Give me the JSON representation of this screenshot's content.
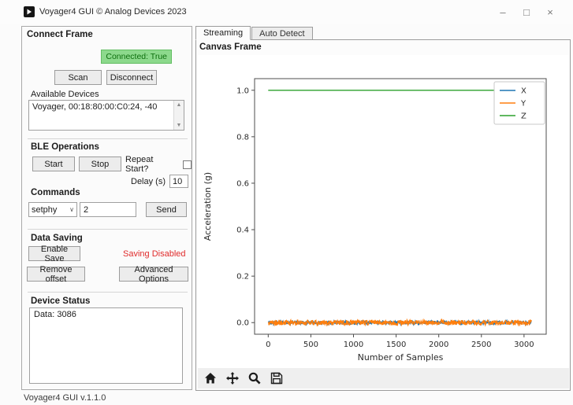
{
  "window": {
    "title": "Voyager4 GUI © Analog Devices 2023",
    "statusbar_text": "Voyager4 GUI v.1.1.0",
    "controls": {
      "minimize_glyph": "–",
      "maximize_glyph": "□",
      "close_glyph": "×"
    }
  },
  "icons": {
    "app_logo": "play-triangle-icon",
    "dropdown_chevron": "∨",
    "scroll_up": "▲",
    "scroll_down": "▼",
    "mpl_toolbar": [
      "home-icon",
      "pan-icon",
      "zoom-icon",
      "save-icon"
    ]
  },
  "left_panel": {
    "title": "Connect Frame",
    "connected_badge": "Connected: True",
    "badge_colors": {
      "background": "#8cd98c",
      "text": "#0d6e0d"
    },
    "scan_button": "Scan",
    "disconnect_button": "Disconnect",
    "available_devices_label": "Available Devices",
    "devices": [
      "Voyager, 00:18:80:00:C0:24, -40"
    ],
    "ble_operations": {
      "title": "BLE Operations",
      "start_button": "Start",
      "stop_button": "Stop",
      "repeat_label": "Repeat Start?",
      "repeat_checked": false,
      "delay_label": "Delay (s)",
      "delay_value": "10"
    },
    "commands": {
      "title": "Commands",
      "selected_command": "setphy",
      "argument_value": "2",
      "send_button": "Send"
    },
    "data_saving": {
      "title": "Data Saving",
      "enable_save_button": "Enable Save",
      "saving_status": "Saving Disabled",
      "saving_status_color": "#e02b2b",
      "remove_offset_button": "Remove offset",
      "advanced_options_button": "Advanced Options"
    },
    "device_status": {
      "title": "Device Status",
      "text": "Data: 3086"
    }
  },
  "right_panel": {
    "tabs": [
      {
        "label": "Streaming",
        "active": true
      },
      {
        "label": "Auto Detect",
        "active": false
      }
    ],
    "canvas_title": "Canvas Frame"
  },
  "chart_data": {
    "type": "line",
    "title": "",
    "xlabel": "Number of Samples",
    "ylabel": "Acceleration (g)",
    "xticks": [
      0,
      500,
      1000,
      1500,
      2000,
      2500,
      3000
    ],
    "yticks": [
      0.0,
      0.2,
      0.4,
      0.6,
      0.8,
      1.0
    ],
    "xlim": [
      -160,
      3260
    ],
    "ylim": [
      -0.05,
      1.05
    ],
    "n_samples": 3086,
    "grid": false,
    "legend": {
      "position": "upper right",
      "entries": [
        "X",
        "Y",
        "Z"
      ]
    },
    "series": [
      {
        "name": "X",
        "color": "#1f77b4",
        "mean": 0.0,
        "noise": 0.008
      },
      {
        "name": "Y",
        "color": "#ff7f0e",
        "mean": 0.0,
        "noise": 0.011
      },
      {
        "name": "Z",
        "color": "#2ca02c",
        "mean": 1.0,
        "noise": 0.0
      }
    ]
  }
}
